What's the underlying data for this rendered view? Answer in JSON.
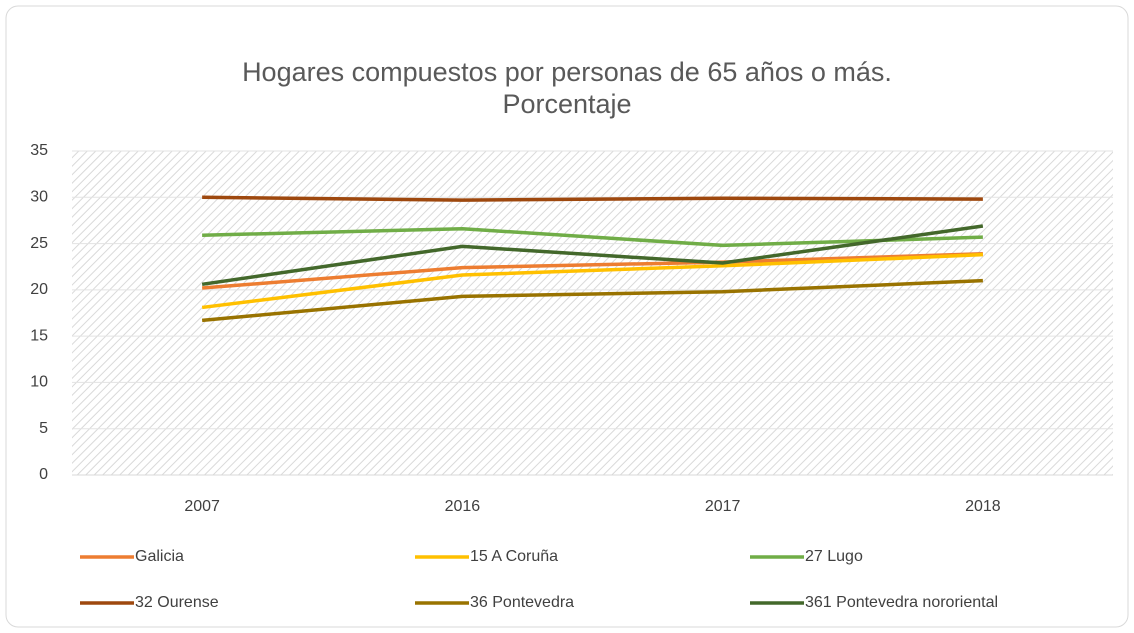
{
  "chart_data": {
    "type": "line",
    "title": "Hogares compuestos por personas de 65 años o más. Porcentaje",
    "categories": [
      "2007",
      "2016",
      "2017",
      "2018"
    ],
    "series": [
      {
        "name": "Galicia",
        "color": "#ed7d31",
        "values": [
          20.2,
          22.4,
          23.0,
          23.9
        ]
      },
      {
        "name": "15 A Coruña",
        "color": "#ffc000",
        "values": [
          18.1,
          21.6,
          22.6,
          23.8
        ]
      },
      {
        "name": "27 Lugo",
        "color": "#70ad47",
        "values": [
          25.9,
          26.6,
          24.8,
          25.7
        ]
      },
      {
        "name": "32 Ourense",
        "color": "#9e480e",
        "values": [
          30.0,
          29.7,
          29.9,
          29.8
        ]
      },
      {
        "name": "36 Pontevedra",
        "color": "#997300",
        "values": [
          16.7,
          19.3,
          19.8,
          21.0
        ]
      },
      {
        "name": "361 Pontevedra nororiental",
        "color": "#43682b",
        "values": [
          20.6,
          24.7,
          22.9,
          26.9
        ]
      }
    ],
    "ylim": [
      0,
      35
    ],
    "yticks": [
      0,
      5,
      10,
      15,
      20,
      25,
      30,
      35
    ],
    "grid": true
  }
}
